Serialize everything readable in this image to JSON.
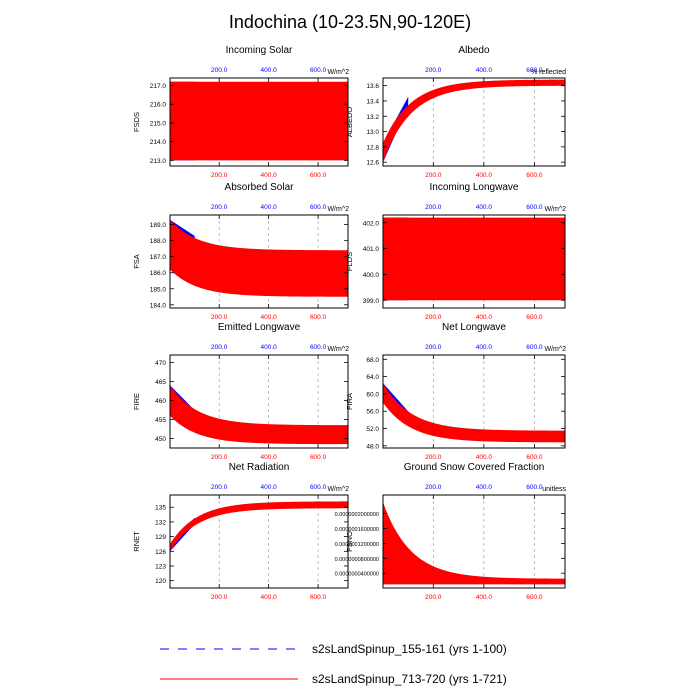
{
  "figure_title": "Indochina (10-23.5N,90-120E)",
  "colors": {
    "blue": "#0000ff",
    "red": "#ff0000",
    "grid": "#999999"
  },
  "x_ticks": [
    200,
    400,
    600
  ],
  "x_tick_labels": [
    "200.0",
    "400.0",
    "600.0"
  ],
  "x_range": [
    1,
    721
  ],
  "legend": [
    {
      "label": "s2sLandSpinup_155-161 (yrs 1-100)",
      "style": "dashed",
      "color": "#0000ff"
    },
    {
      "label": "s2sLandSpinup_713-720 (yrs 1-721)",
      "style": "solid",
      "color": "#ff0000"
    }
  ],
  "chart_data": [
    {
      "type": "line",
      "title": "Incoming Solar",
      "ylabel": "FSDS",
      "units": "W/m^2",
      "ylim": [
        212.7,
        217.4
      ],
      "yticks": [
        213.0,
        214.0,
        215.0,
        216.0,
        217.0
      ],
      "ytick_labels": [
        "213.0",
        "214.0",
        "215.0",
        "216.0",
        "217.0"
      ],
      "series": [
        {
          "name": "s2sLandSpinup_155-161",
          "years": [
            1,
            100
          ],
          "low": [
            213.0,
            213.0
          ],
          "high": [
            217.2,
            217.2
          ]
        },
        {
          "name": "s2sLandSpinup_713-720",
          "years": [
            1,
            721
          ],
          "low": [
            213.0,
            213.0
          ],
          "high": [
            217.2,
            217.2
          ],
          "mid_band": [
            214.1,
            214.9
          ]
        }
      ]
    },
    {
      "type": "line",
      "title": "Albedo",
      "ylabel": "ALBEDO",
      "units": "% reflected",
      "ylim": [
        12.55,
        13.7
      ],
      "yticks": [
        12.6,
        12.8,
        13.0,
        13.2,
        13.4,
        13.6
      ],
      "ytick_labels": [
        "12.6",
        "12.8",
        "13.0",
        "13.2",
        "13.4",
        "13.6"
      ],
      "series": [
        {
          "name": "s2sLandSpinup_155-161",
          "years": [
            1,
            100
          ],
          "low": [
            12.6,
            13.33
          ],
          "high": [
            12.85,
            13.45
          ]
        },
        {
          "name": "s2sLandSpinup_713-720",
          "years": [
            1,
            721
          ],
          "low": [
            12.6,
            13.6
          ],
          "high": [
            12.85,
            13.68
          ]
        }
      ]
    },
    {
      "type": "line",
      "title": "Absorbed Solar",
      "ylabel": "FSA",
      "units": "W/m^2",
      "ylim": [
        183.8,
        189.6
      ],
      "yticks": [
        184.0,
        185.0,
        186.0,
        187.0,
        188.0,
        189.0
      ],
      "ytick_labels": [
        "184.0",
        "185.0",
        "186.0",
        "187.0",
        "188.0",
        "189.0"
      ],
      "series": [
        {
          "name": "s2sLandSpinup_155-161",
          "years": [
            1,
            100
          ],
          "low": [
            186.2,
            185.4
          ],
          "high": [
            189.3,
            188.3
          ]
        },
        {
          "name": "s2sLandSpinup_713-720",
          "years": [
            1,
            721
          ],
          "low": [
            186.2,
            184.5
          ],
          "high": [
            189.3,
            187.4
          ]
        }
      ]
    },
    {
      "type": "line",
      "title": "Incoming Longwave",
      "ylabel": "FLDS",
      "units": "W/m^2",
      "ylim": [
        398.7,
        402.3
      ],
      "yticks": [
        399.0,
        400.0,
        401.0,
        402.0
      ],
      "ytick_labels": [
        "399.0",
        "400.0",
        "401.0",
        "402.0"
      ],
      "series": [
        {
          "name": "s2sLandSpinup_155-161",
          "years": [
            1,
            100
          ],
          "low": [
            399.0,
            399.0
          ],
          "high": [
            402.2,
            402.2
          ]
        },
        {
          "name": "s2sLandSpinup_713-720",
          "years": [
            1,
            721
          ],
          "low": [
            399.0,
            399.0
          ],
          "high": [
            402.2,
            402.2
          ],
          "mid_band": [
            399.9,
            401.0
          ]
        }
      ]
    },
    {
      "type": "line",
      "title": "Emitted Longwave",
      "ylabel": "FIRE",
      "units": "W/m^2",
      "ylim": [
        447.5,
        472
      ],
      "yticks": [
        450,
        455,
        460,
        465,
        470
      ],
      "ytick_labels": [
        "450",
        "455",
        "460",
        "465",
        "470"
      ],
      "series": [
        {
          "name": "s2sLandSpinup_155-161",
          "years": [
            1,
            100
          ],
          "low": [
            456.0,
            452.0
          ],
          "high": [
            464.0,
            457.5
          ]
        },
        {
          "name": "s2sLandSpinup_713-720",
          "years": [
            1,
            721
          ],
          "low": [
            456.0,
            448.5
          ],
          "high": [
            464.0,
            453.5
          ]
        }
      ]
    },
    {
      "type": "line",
      "title": "Net Longwave",
      "ylabel": "FIRA",
      "units": "W/m^2",
      "ylim": [
        47.5,
        69
      ],
      "yticks": [
        48.0,
        52.0,
        56.0,
        60.0,
        64.0,
        68.0
      ],
      "ytick_labels": [
        "48.0",
        "52.0",
        "56.0",
        "60.0",
        "64.0",
        "68.0"
      ],
      "series": [
        {
          "name": "s2sLandSpinup_155-161",
          "years": [
            1,
            100
          ],
          "low": [
            58.0,
            53.0
          ],
          "high": [
            62.5,
            56.0
          ]
        },
        {
          "name": "s2sLandSpinup_713-720",
          "years": [
            1,
            721
          ],
          "low": [
            58.0,
            48.8
          ],
          "high": [
            62.5,
            51.5
          ]
        }
      ]
    },
    {
      "type": "line",
      "title": "Net Radiation",
      "ylabel": "RNET",
      "units": "W/m^2",
      "ylim": [
        118.5,
        137.5
      ],
      "yticks": [
        120,
        123,
        126,
        129,
        132,
        135
      ],
      "ytick_labels": [
        "120",
        "123",
        "126",
        "129",
        "132",
        "135"
      ],
      "series": [
        {
          "name": "s2sLandSpinup_155-161",
          "years": [
            1,
            100
          ],
          "low": [
            126.0,
            131.5
          ],
          "high": [
            127.5,
            132.8
          ]
        },
        {
          "name": "s2sLandSpinup_713-720",
          "years": [
            1,
            721
          ],
          "low": [
            126.0,
            134.8
          ],
          "high": [
            127.5,
            136.2
          ]
        }
      ]
    },
    {
      "type": "line",
      "title": "Ground Snow Covered Fraction",
      "ylabel": "FSNO",
      "units": "unitless",
      "ylim": [
        2e-10,
        2.5e-07
      ],
      "yticks": [
        4e-08,
        8e-08,
        1.2e-07,
        1.6e-07,
        2e-07
      ],
      "ytick_labels": [
        "0.0000000400000",
        "0.0000000800000",
        "0.0000001200000",
        "0.0000001600000",
        "0.0000002000000"
      ],
      "series": [
        {
          "name": "s2sLandSpinup_155-161",
          "years": [
            1,
            100
          ],
          "low": [
            1e-08,
            1.5e-08
          ],
          "high": [
            2.3e-07,
            3e-08
          ]
        },
        {
          "name": "s2sLandSpinup_713-720",
          "years": [
            1,
            721
          ],
          "low": [
            1e-08,
            1e-08
          ],
          "high": [
            2.3e-07,
            2.5e-08
          ]
        }
      ]
    }
  ]
}
